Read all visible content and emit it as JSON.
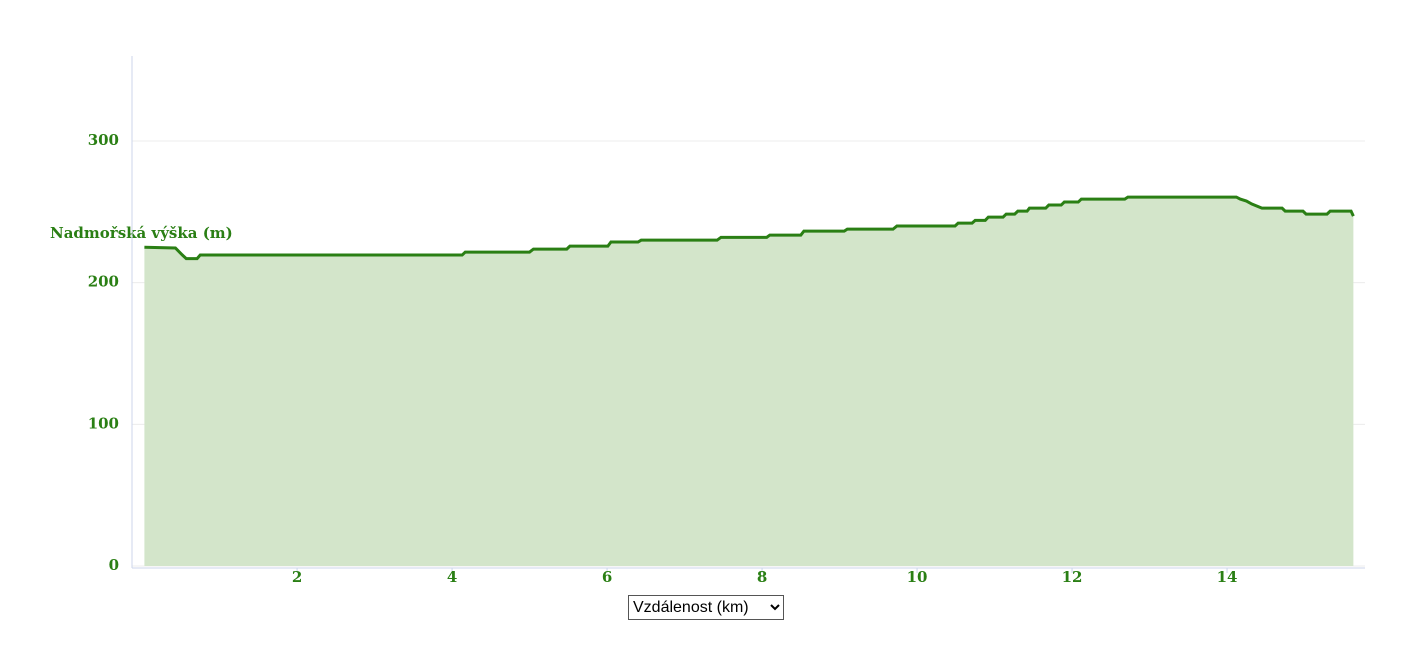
{
  "chart_data": {
    "type": "area",
    "y_label": "Nadmořská výška (m)",
    "x_label": "Vzdálenost (km)",
    "x": [
      0.03,
      0.43,
      0.52,
      0.57,
      0.71,
      0.75,
      4.13,
      4.17,
      5.0,
      5.05,
      5.48,
      5.52,
      6.01,
      6.05,
      6.4,
      6.44,
      7.42,
      7.47,
      8.06,
      8.1,
      8.5,
      8.54,
      9.06,
      9.1,
      9.69,
      9.74,
      10.49,
      10.53,
      10.71,
      10.75,
      10.88,
      10.92,
      11.11,
      11.15,
      11.26,
      11.3,
      11.42,
      11.45,
      11.66,
      11.7,
      11.86,
      11.9,
      12.08,
      12.12,
      12.68,
      12.72,
      14.12,
      14.17,
      14.25,
      14.32,
      14.45,
      14.71,
      14.75,
      14.98,
      15.02,
      15.29,
      15.33,
      15.6,
      15.63
    ],
    "values": [
      225,
      224.5,
      219.5,
      217,
      217,
      219.5,
      219.5,
      221.6,
      221.6,
      223.7,
      223.7,
      225.8,
      225.8,
      228.7,
      228.7,
      230,
      230,
      232,
      232,
      233.6,
      233.6,
      236.4,
      236.4,
      237.8,
      237.8,
      240,
      240,
      242,
      242,
      244,
      244,
      246.3,
      246.3,
      248.4,
      248.4,
      250.5,
      250.5,
      252.6,
      252.6,
      254.8,
      254.8,
      256.9,
      256.9,
      259,
      259,
      260.4,
      260.4,
      259,
      257.6,
      255.5,
      252.6,
      252.6,
      250.5,
      250.5,
      248.4,
      248.4,
      250.5,
      250.5,
      247
    ],
    "color": "#2a7f14",
    "fill_color": "#d3e5ca",
    "xlim": [
      -0.13,
      15.78
    ],
    "ylim": [
      0,
      360
    ],
    "xticks": [
      2,
      4,
      6,
      8,
      10,
      12,
      14
    ],
    "yticks": [
      0,
      100,
      200,
      300
    ],
    "grid": true
  }
}
